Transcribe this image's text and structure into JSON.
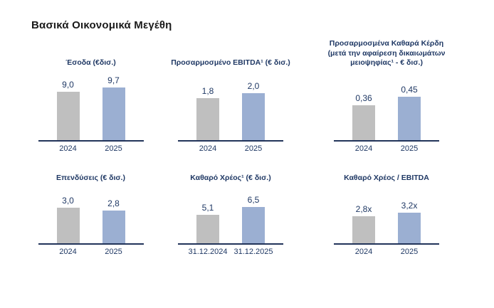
{
  "page": {
    "heading": "Βασικά Οικονομικά Μεγέθη",
    "background": "#ffffff"
  },
  "colors": {
    "heading_text": "#1a1a1a",
    "chart_text_navy": "#1f3864",
    "axis_line": "#22345a",
    "bar_2024_gray": "#bfbfbf",
    "bar_2025_blue": "#9bafd2"
  },
  "chart_data": [
    {
      "type": "bar",
      "title": "Έσοδα (€δισ.)",
      "categories": [
        "2024",
        "2025"
      ],
      "values": [
        9.0,
        9.7
      ],
      "value_labels": [
        "9,0",
        "9,7"
      ],
      "series_colors": [
        "#bfbfbf",
        "#9bafd2"
      ],
      "ylim": [
        0,
        12.5
      ],
      "xlabel": "",
      "ylabel": "",
      "grid": false,
      "legend": "none"
    },
    {
      "type": "bar",
      "title": "Προσαρμοσμένο EBITDA¹ (€ δισ.)",
      "categories": [
        "2024",
        "2025"
      ],
      "values": [
        1.8,
        2.0
      ],
      "value_labels": [
        "1,8",
        "2,0"
      ],
      "series_colors": [
        "#bfbfbf",
        "#9bafd2"
      ],
      "ylim": [
        0,
        2.9
      ],
      "xlabel": "",
      "ylabel": "",
      "grid": false,
      "legend": "none"
    },
    {
      "type": "bar",
      "title": "Προσαρμοσμένα Καθαρά Κέρδη\n(μετά την αφαίρεση δικαιωμάτων\nμειοψηφίας¹ - € δισ.)",
      "categories": [
        "2024",
        "2025"
      ],
      "values": [
        0.36,
        0.45
      ],
      "value_labels": [
        "0,36",
        "0,45"
      ],
      "series_colors": [
        "#bfbfbf",
        "#9bafd2"
      ],
      "ylim": [
        0,
        0.7
      ],
      "xlabel": "",
      "ylabel": "",
      "grid": false,
      "legend": "none"
    },
    {
      "type": "bar",
      "title": "Επενδύσεις (€ δισ.)",
      "categories": [
        "2024",
        "2025"
      ],
      "values": [
        3.0,
        2.8
      ],
      "value_labels": [
        "3,0",
        "2,8"
      ],
      "series_colors": [
        "#bfbfbf",
        "#9bafd2"
      ],
      "ylim": [
        0,
        4.7
      ],
      "xlabel": "",
      "ylabel": "",
      "grid": false,
      "legend": "none"
    },
    {
      "type": "bar",
      "title": "Καθαρό Χρέος¹ (€ δισ.)",
      "categories": [
        "31.12.2024",
        "31.12.2025"
      ],
      "values": [
        5.1,
        6.5
      ],
      "value_labels": [
        "5,1",
        "6,5"
      ],
      "series_colors": [
        "#bfbfbf",
        "#9bafd2"
      ],
      "ylim": [
        0,
        10
      ],
      "xlabel": "",
      "ylabel": "",
      "grid": false,
      "legend": "none"
    },
    {
      "type": "bar",
      "title": "Καθαρό Χρέος / EBITDA",
      "categories": [
        "2024",
        "2025"
      ],
      "values": [
        2.8,
        3.2
      ],
      "value_labels": [
        "2,8x",
        "3,2x"
      ],
      "series_colors": [
        "#bfbfbf",
        "#9bafd2"
      ],
      "ylim": [
        0,
        5.8
      ],
      "xlabel": "",
      "ylabel": "",
      "grid": false,
      "legend": "none"
    }
  ]
}
